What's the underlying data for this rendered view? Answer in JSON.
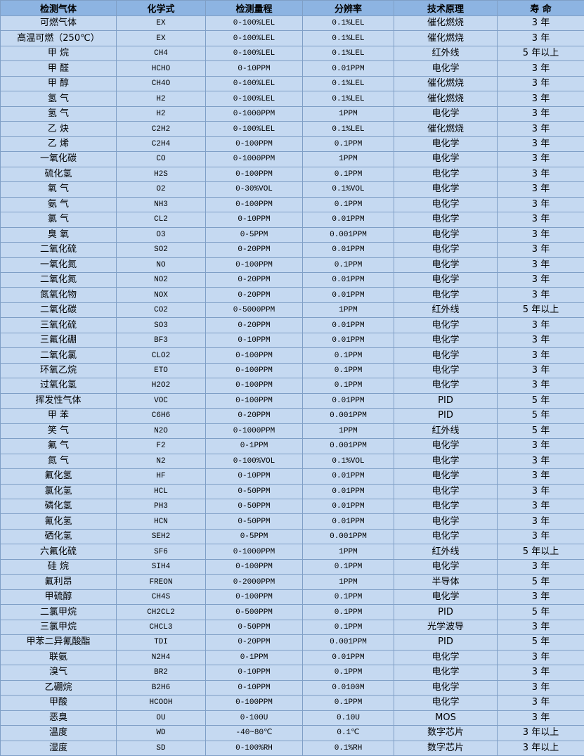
{
  "table": {
    "header": [
      "检测气体",
      "化学式",
      "检测量程",
      "分辨率",
      "技术原理",
      "寿 命"
    ],
    "rows": [
      [
        "可燃气体",
        "EX",
        "0-100%LEL",
        "0.1%LEL",
        "催化燃烧",
        "3 年"
      ],
      [
        "高温可燃（250℃）",
        "EX",
        "0-100%LEL",
        "0.1%LEL",
        "催化燃烧",
        "3 年"
      ],
      [
        "甲 烷",
        "CH4",
        "0-100%LEL",
        "0.1%LEL",
        "红外线",
        "5 年以上"
      ],
      [
        "甲 醛",
        "HCHO",
        "0-10PPM",
        "0.01PPM",
        "电化学",
        "3 年"
      ],
      [
        "甲 醇",
        "CH4O",
        "0-100%LEL",
        "0.1%LEL",
        "催化燃烧",
        "3 年"
      ],
      [
        "氢 气",
        "H2",
        "0-100%LEL",
        "0.1%LEL",
        "催化燃烧",
        "3 年"
      ],
      [
        "氢 气",
        "H2",
        "0-1000PPM",
        "1PPM",
        "电化学",
        "3 年"
      ],
      [
        "乙 炔",
        "C2H2",
        "0-100%LEL",
        "0.1%LEL",
        "催化燃烧",
        "3 年"
      ],
      [
        "乙 烯",
        "C2H4",
        "0-100PPM",
        "0.1PPM",
        "电化学",
        "3 年"
      ],
      [
        "一氧化碳",
        "CO",
        "0-1000PPM",
        "1PPM",
        "电化学",
        "3 年"
      ],
      [
        "硫化氢",
        "H2S",
        "0-100PPM",
        "0.1PPM",
        "电化学",
        "3 年"
      ],
      [
        "氧 气",
        "O2",
        "0-30%VOL",
        "0.1%VOL",
        "电化学",
        "3 年"
      ],
      [
        "氨 气",
        "NH3",
        "0-100PPM",
        "0.1PPM",
        "电化学",
        "3 年"
      ],
      [
        "氯 气",
        "CL2",
        "0-10PPM",
        "0.01PPM",
        "电化学",
        "3 年"
      ],
      [
        "臭 氧",
        "O3",
        "0-5PPM",
        "0.001PPM",
        "电化学",
        "3 年"
      ],
      [
        "二氧化硫",
        "SO2",
        "0-20PPM",
        "0.01PPM",
        "电化学",
        "3 年"
      ],
      [
        "一氧化氮",
        "NO",
        "0-100PPM",
        "0.1PPM",
        "电化学",
        "3 年"
      ],
      [
        "二氧化氮",
        "NO2",
        "0-20PPM",
        "0.01PPM",
        "电化学",
        "3 年"
      ],
      [
        "氮氧化物",
        "NOX",
        "0-20PPM",
        "0.01PPM",
        "电化学",
        "3 年"
      ],
      [
        "二氧化碳",
        "CO2",
        "0-5000PPM",
        "1PPM",
        "红外线",
        "5 年以上"
      ],
      [
        "三氧化硫",
        "SO3",
        "0-20PPM",
        "0.01PPM",
        "电化学",
        "3 年"
      ],
      [
        "三氟化硼",
        "BF3",
        "0-10PPM",
        "0.01PPM",
        "电化学",
        "3 年"
      ],
      [
        "二氧化氯",
        "CLO2",
        "0-100PPM",
        "0.1PPM",
        "电化学",
        "3 年"
      ],
      [
        "环氧乙烷",
        "ETO",
        "0-100PPM",
        "0.1PPM",
        "电化学",
        "3 年"
      ],
      [
        "过氧化氢",
        "H2O2",
        "0-100PPM",
        "0.1PPM",
        "电化学",
        "3 年"
      ],
      [
        "挥发性气体",
        "VOC",
        "0-100PPM",
        "0.01PPM",
        "PID",
        "5 年"
      ],
      [
        "甲 苯",
        "C6H6",
        "0-20PPM",
        "0.001PPM",
        "PID",
        "5 年"
      ],
      [
        "笑 气",
        "N2O",
        "0-1000PPM",
        "1PPM",
        "红外线",
        "5 年"
      ],
      [
        "氟 气",
        "F2",
        "0-1PPM",
        "0.001PPM",
        "电化学",
        "3 年"
      ],
      [
        "氮 气",
        "N2",
        "0-100%VOL",
        "0.1%VOL",
        "电化学",
        "3 年"
      ],
      [
        "氟化氢",
        "HF",
        "0-10PPM",
        "0.01PPM",
        "电化学",
        "3 年"
      ],
      [
        "氯化氢",
        "HCL",
        "0-50PPM",
        "0.01PPM",
        "电化学",
        "3 年"
      ],
      [
        "磷化氢",
        "PH3",
        "0-50PPM",
        "0.01PPM",
        "电化学",
        "3 年"
      ],
      [
        "氰化氢",
        "HCN",
        "0-50PPM",
        "0.01PPM",
        "电化学",
        "3 年"
      ],
      [
        "硒化氢",
        "SEH2",
        "0-5PPM",
        "0.001PPM",
        "电化学",
        "3 年"
      ],
      [
        "六氟化硫",
        "SF6",
        "0-1000PPM",
        "1PPM",
        "红外线",
        "5 年以上"
      ],
      [
        "硅 烷",
        "SIH4",
        "0-100PPM",
        "0.1PPM",
        "电化学",
        "3 年"
      ],
      [
        "氟利昂",
        "FREON",
        "0-2000PPM",
        "1PPM",
        "半导体",
        "5 年"
      ],
      [
        "甲硫醇",
        "CH4S",
        "0-100PPM",
        "0.1PPM",
        "电化学",
        "3 年"
      ],
      [
        "二氯甲烷",
        "CH2CL2",
        "0-500PPM",
        "0.1PPM",
        "PID",
        "5 年"
      ],
      [
        "三氯甲烷",
        "CHCL3",
        "0-50PPM",
        "0.1PPM",
        "光学波导",
        "3 年"
      ],
      [
        "甲苯二异氰酸酯",
        "TDI",
        "0-20PPM",
        "0.001PPM",
        "PID",
        "5 年"
      ],
      [
        "联氨",
        "N2H4",
        "0-1PPM",
        "0.01PPM",
        "电化学",
        "3 年"
      ],
      [
        "溴气",
        "BR2",
        "0-10PPM",
        "0.1PPM",
        "电化学",
        "3 年"
      ],
      [
        "乙硼烷",
        "B2H6",
        "0-10PPM",
        "0.0100M",
        "电化学",
        "3 年"
      ],
      [
        "甲酸",
        "HCOOH",
        "0-100PPM",
        "0.1PPM",
        "电化学",
        "3 年"
      ],
      [
        "恶臭",
        "OU",
        "0-100U",
        "0.10U",
        "MOS",
        "3 年"
      ],
      [
        "温度",
        "WD",
        "-40~80℃",
        "0.1℃",
        "数字芯片",
        "3 年以上"
      ],
      [
        "湿度",
        "SD",
        "0-100%RH",
        "0.1%RH",
        "数字芯片",
        "3 年以上"
      ]
    ]
  }
}
